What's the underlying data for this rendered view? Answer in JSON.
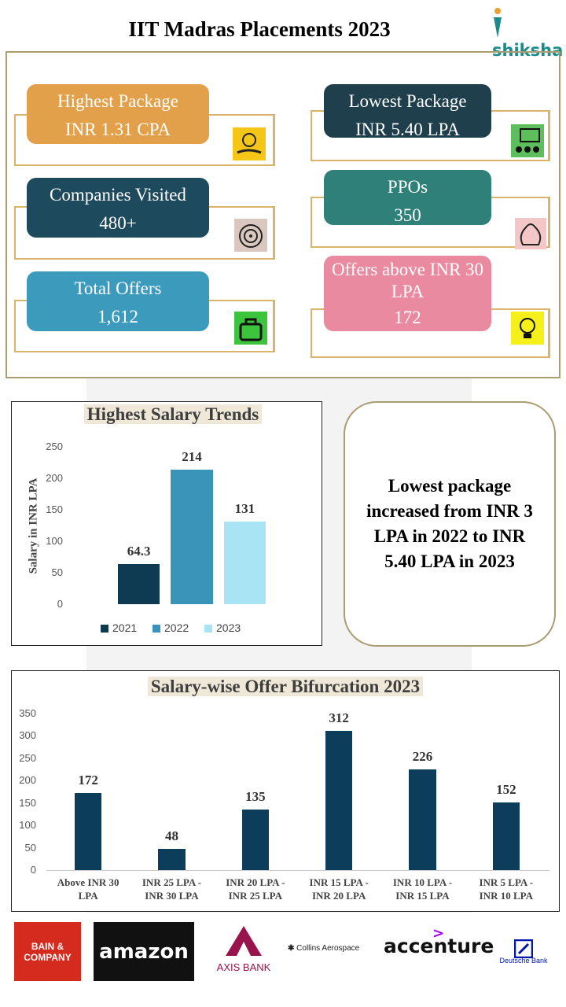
{
  "header": {
    "title": "IIT Madras Placements 2023",
    "logo": "shiksha"
  },
  "stats": [
    {
      "label": "Highest Package",
      "value": "INR 1.31 CPA"
    },
    {
      "label": "Companies Visited",
      "value": "480+"
    },
    {
      "label": "Total Offers",
      "value": "1,612"
    },
    {
      "label": "Lowest Package",
      "value": "INR 5.40 LPA"
    },
    {
      "label": "PPOs",
      "value": "350"
    },
    {
      "label": "Offers above INR 30 LPA",
      "value": "172"
    }
  ],
  "chart_data": [
    {
      "type": "bar",
      "title": "Highest Salary Trends",
      "y_label": "Salary in INR LPA",
      "categories": [
        "2021",
        "2022",
        "2023"
      ],
      "values": [
        64.3,
        214,
        131
      ],
      "colors": [
        "#0e3b52",
        "#3a94ba",
        "#a8e4f3"
      ],
      "ylim": [
        0,
        250
      ],
      "yticks": [
        0,
        50,
        100,
        150,
        200,
        250
      ],
      "legend": "bottom"
    },
    {
      "type": "bar",
      "title": "Salary-wise Offer Bifurcation 2023",
      "categories": [
        "Above INR 30 LPA",
        "INR 25 LPA - INR 30 LPA",
        "INR 20 LPA - INR 25 LPA",
        "INR 15 LPA - INR 20 LPA",
        "INR 10 LPA - INR 15 LPA",
        "INR 5 LPA - INR 10 LPA"
      ],
      "values": [
        172,
        48,
        135,
        312,
        226,
        152
      ],
      "color": "#0c3d5a",
      "ylim": [
        0,
        350
      ],
      "yticks": [
        0,
        50,
        100,
        150,
        200,
        250,
        300,
        350
      ]
    }
  ],
  "note": "Lowest package increased from INR 3 LPA in 2022 to INR 5.40 LPA in 2023",
  "companies": [
    "BAIN & COMPANY",
    "amazon",
    "AXIS BANK",
    "Collins Aerospace",
    "accenture",
    "Deutsche Bank"
  ]
}
